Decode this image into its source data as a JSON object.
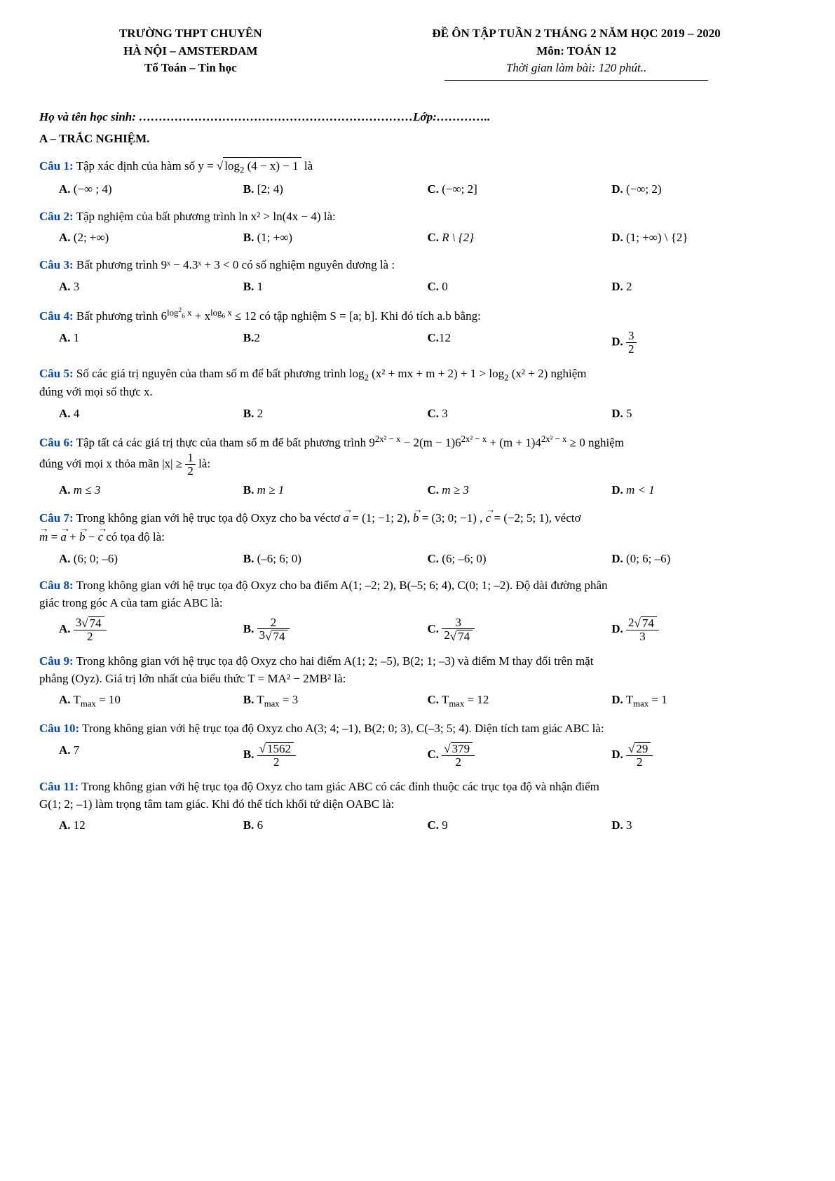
{
  "header": {
    "school_line1": "TRƯỜNG THPT CHUYÊN",
    "school_line2": "HÀ NỘI – AMSTERDAM",
    "school_line3": "Tổ Toán – Tin học",
    "title": "ĐỀ ÔN TẬP TUẦN 2 THÁNG 2 NĂM HỌC 2019 – 2020",
    "subject": "Môn: TOÁN 12",
    "duration": "Thời gian làm bài: 120 phút.."
  },
  "student": {
    "prefix": "Họ và tên học sinh: ……………………………………………………………",
    "class_prefix": "Lớp:………….."
  },
  "section_a": "A – TRẮC NGHIỆM.",
  "q1": {
    "label": "Câu 1:",
    "text_pre": " Tập xác định của hàm số  y = ",
    "sqrt_inner": "log",
    "sqrt_inner2": "(4 − x) − 1",
    "text_post": "  là",
    "A": "(−∞ ; 4)",
    "B": "[2; 4)",
    "C": "(−∞; 2]",
    "D": "(−∞; 2)"
  },
  "q2": {
    "label": "Câu 2:",
    "text": " Tập nghiệm của bất phương trình  ln x² > ln(4x − 4)  là:",
    "A": "(2; +∞)",
    "B": "(1; +∞)",
    "C": "R \\ {2}",
    "D": "(1; +∞) \\ {2}"
  },
  "q3": {
    "label": "Câu 3:",
    "text": " Bất phương trình  9ˣ − 4.3ˣ + 3 < 0 có số nghiệm nguyên dương là :",
    "A": "3",
    "B": "1",
    "C": "0",
    "D": "2"
  },
  "q4": {
    "label": "Câu 4:",
    "text_pre": " Bất phương trình  6",
    "exp1_a": "log",
    "exp1_b": "2",
    "exp1_c": "6",
    "exp1_d": " x",
    "text_mid": " + x",
    "exp2_a": "log",
    "exp2_c": "6",
    "exp2_d": " x",
    "text_post": " ≤ 12  có tập nghiệm S = [a; b]. Khi đó tích a.b bằng:",
    "A": "1",
    "B": "2",
    "C": "12",
    "D_num": "3",
    "D_den": "2"
  },
  "q5": {
    "label": "Câu 5:",
    "text1": " Số các giá trị nguyên của tham số m để bất phương trình  log",
    "text2": "(x² + mx + m + 2) + 1 > log",
    "text3": "(x² + 2)  nghiệm",
    "text4": "đúng với mọi số thực x.",
    "A": "4",
    "B": "2",
    "C": "3",
    "D": "5"
  },
  "q6": {
    "label": "Câu 6:",
    "text1": " Tập tất cả các giá trị thực của tham số m để bất phương trình  9",
    "e1": "2x² − x",
    "text2": " − 2(m − 1)6",
    "e2": "2x² − x",
    "text3": " + (m + 1)4",
    "e3": "2x² − x",
    "text4": " ≥ 0  nghiệm",
    "text5": "đúng với mọi x thỏa mãn  |x| ≥ ",
    "f_num": "1",
    "f_den": "2",
    "text6": " là:",
    "A": "m ≤ 3",
    "B": "m ≥ 1",
    "C": "m ≥ 3",
    "D": "m < 1"
  },
  "q7": {
    "label": "Câu 7:",
    "text1": " Trong không gian với hệ trục tọa độ Oxyz cho ba véctơ ",
    "va": "a",
    "va_val": " = (1; −1; 2),",
    "vb": "b",
    "vb_val": " = (3; 0; −1) ,",
    "vc": "c",
    "vc_val": " = (−2; 5; 1)",
    "text2": ", véctơ",
    "text3_m": "m",
    "text3": " = ",
    "text3_a": "a",
    "text3_plus1": " + ",
    "text3_b": "b",
    "text3_minus": " − ",
    "text3_c": "c",
    "text4": "  có tọa độ là:",
    "A": "(6; 0; –6)",
    "B": "(–6; 6; 0)",
    "C": "(6; –6; 0)",
    "D": "(0; 6; –6)"
  },
  "q8": {
    "label": "Câu 8:",
    "text1": " Trong không gian với hệ trục tọa độ Oxyz cho ba điểm A(1; –2; 2), B(–5; 6; 4), C(0; 1; –2). Độ dài đường phân",
    "text2": "giác trong góc A của tam giác ABC là:",
    "A_num_a": "3",
    "A_num_r": "74",
    "A_den": "2",
    "B_num": "2",
    "B_den_a": "3",
    "B_den_r": "74",
    "C_num": "3",
    "C_den_a": "2",
    "C_den_r": "74",
    "D_num_a": "2",
    "D_num_r": "74",
    "D_den": "3"
  },
  "q9": {
    "label": "Câu 9:",
    "text1": " Trong không gian với hệ trục tọa độ Oxyz cho hai điểm A(1; 2; –5), B(2; 1; –3) và điểm M thay đổi trên mặt",
    "text2": "phẳng (Oyz). Giá trị lớn nhất của biểu thức  T = MA² − 2MB² là:",
    "A_pre": "T",
    "A_sub": "max",
    "A_val": " = 10",
    "B_pre": "T",
    "B_sub": "max",
    "B_val": " = 3",
    "C_pre": "T",
    "C_sub": "max",
    "C_val": " = 12",
    "D_pre": "T",
    "D_sub": "max",
    "D_val": " = 1"
  },
  "q10": {
    "label": "Câu 10:",
    "text": " Trong không gian với hệ trục tọa độ Oxyz cho A(3; 4; –1), B(2; 0; 3), C(–3; 5; 4). Diện tích tam giác ABC là:",
    "A": "7",
    "B_r": "1562",
    "B_den": "2",
    "C_r": "379",
    "C_den": "2",
    "D_r": "29",
    "D_den": "2"
  },
  "q11": {
    "label": "Câu 11:",
    "text1": " Trong không gian với hệ trục tọa độ Oxyz cho tam giác ABC có các đỉnh thuộc các trục tọa độ và nhận điểm",
    "text2": "G(1; 2; –1) làm trọng tâm tam giác. Khi đó thể tích khối tứ diện OABC là:",
    "A": "12",
    "B": "6",
    "C": "9",
    "D": "3"
  },
  "labels": {
    "A": "A.",
    "B": "B.",
    "C": "C.",
    "D": "D."
  }
}
